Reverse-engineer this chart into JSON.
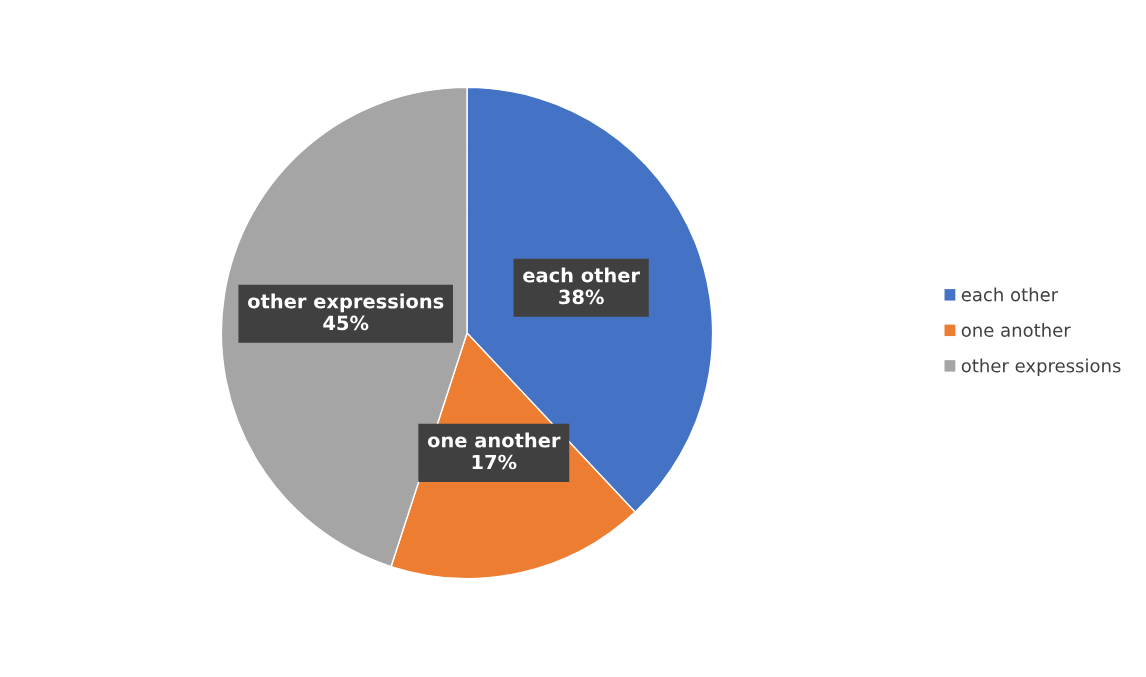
{
  "chart_data": {
    "type": "pie",
    "categories": [
      "each other",
      "one another",
      "other expressions"
    ],
    "values": [
      38,
      17,
      45
    ],
    "value_labels": [
      "38%",
      "17%",
      "45%"
    ],
    "colors": [
      "#4472c4",
      "#ed7d31",
      "#a5a5a5"
    ],
    "legend": "right"
  }
}
